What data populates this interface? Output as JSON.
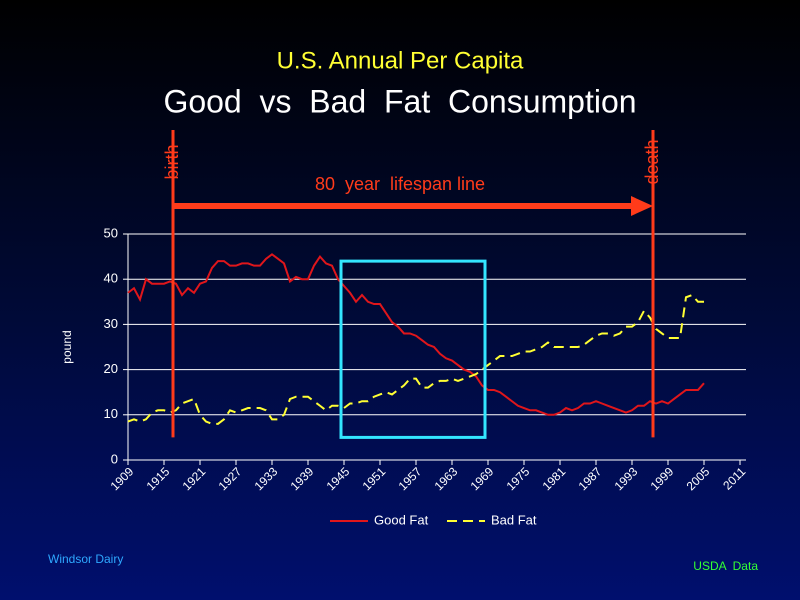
{
  "chart_data": {
    "type": "line",
    "subtitle": "U.S. Annual Per Capita",
    "title": "Good  vs  Bad  Fat  Consumption",
    "ylabel": "pound",
    "x": [
      1909,
      1910,
      1911,
      1912,
      1913,
      1914,
      1915,
      1916,
      1917,
      1918,
      1919,
      1920,
      1921,
      1922,
      1923,
      1924,
      1925,
      1926,
      1927,
      1928,
      1929,
      1930,
      1931,
      1932,
      1933,
      1934,
      1935,
      1936,
      1937,
      1938,
      1939,
      1940,
      1941,
      1942,
      1943,
      1944,
      1945,
      1946,
      1947,
      1948,
      1949,
      1950,
      1951,
      1952,
      1953,
      1954,
      1955,
      1956,
      1957,
      1958,
      1959,
      1960,
      1961,
      1962,
      1963,
      1964,
      1965,
      1966,
      1967,
      1968,
      1969,
      1970,
      1971,
      1972,
      1973,
      1974,
      1975,
      1976,
      1977,
      1978,
      1979,
      1980,
      1981,
      1982,
      1983,
      1984,
      1985,
      1986,
      1987,
      1988,
      1989,
      1990,
      1991,
      1992,
      1993,
      1994,
      1995,
      1996,
      1997,
      1998,
      1999,
      2000,
      2001,
      2002,
      2003,
      2004,
      2005
    ],
    "series": [
      {
        "name": "Good Fat",
        "color": "#e0161b",
        "dash": false,
        "values": [
          37,
          38,
          35.5,
          40,
          39,
          39,
          39,
          39.5,
          39,
          36.5,
          38,
          37,
          39,
          39.5,
          42.5,
          44,
          44,
          43,
          43,
          43.5,
          43.5,
          43,
          43,
          44.5,
          45.5,
          44.5,
          43.5,
          39.5,
          40.5,
          40,
          40,
          43,
          45,
          43.5,
          43,
          40,
          38.5,
          37,
          35,
          36.5,
          35,
          34.5,
          34.5,
          32.5,
          30.5,
          29.5,
          28,
          28,
          27.5,
          26.5,
          25.5,
          25,
          23.5,
          22.5,
          22,
          21,
          20,
          19.5,
          18.5,
          16.5,
          15.5,
          15.5,
          15,
          14,
          13,
          12,
          11.5,
          11,
          11,
          10.5,
          10,
          10,
          10.5,
          11.5,
          11,
          11.5,
          12.5,
          12.5,
          13,
          12.5,
          12,
          11.5,
          11,
          10.5,
          11,
          12,
          12,
          13,
          12.5,
          13,
          12.5,
          13.5,
          14.5,
          15.5,
          15.5,
          15.5,
          17
        ]
      },
      {
        "name": "Bad Fat",
        "color": "#ffff33",
        "dash": true,
        "values": [
          8.5,
          9,
          8.5,
          9,
          10.5,
          11,
          11,
          10.5,
          11,
          12.5,
          13,
          13.5,
          10,
          8.5,
          8,
          8,
          9,
          11,
          10.5,
          11,
          11.5,
          11.5,
          11.5,
          11,
          9,
          9,
          10,
          13.5,
          14,
          14,
          14,
          13,
          12,
          11,
          12,
          12,
          11.5,
          12.5,
          12.5,
          13,
          13,
          14,
          14.5,
          15,
          14.5,
          15.5,
          16.5,
          18,
          18,
          16,
          16,
          17,
          17.5,
          17.5,
          18,
          17.5,
          18,
          18.5,
          19,
          20,
          21,
          22,
          23,
          23,
          23,
          23.5,
          24,
          24,
          24.5,
          25,
          26,
          25,
          25,
          25,
          25,
          25,
          25.5,
          26.5,
          27.5,
          28,
          28,
          27.5,
          28,
          29.5,
          29.5,
          30.5,
          33,
          31.5,
          29,
          28,
          27,
          27,
          27,
          36,
          36.5,
          35,
          35
        ]
      }
    ],
    "xlim": [
      1909,
      2012
    ],
    "xticks": [
      1909,
      1915,
      1921,
      1927,
      1933,
      1939,
      1945,
      1951,
      1957,
      1963,
      1969,
      1975,
      1981,
      1987,
      1993,
      1999,
      2005,
      2011
    ],
    "ylim": [
      0,
      50
    ],
    "yticks": [
      0,
      10,
      20,
      30,
      40,
      50
    ],
    "grid": true,
    "legend": "bottom",
    "markers": [
      {
        "label": "birth",
        "x": 1916.5
      },
      {
        "label": "death",
        "x": 1996.5
      }
    ],
    "marker_bottom": 5,
    "lifespan_label": "80  year  lifespan line",
    "highlight": {
      "xlim": [
        1944.5,
        1968.5
      ],
      "ylim": [
        5,
        44
      ]
    },
    "footer_left": "Windsor Dairy",
    "footer_right": "USDA  Data"
  }
}
